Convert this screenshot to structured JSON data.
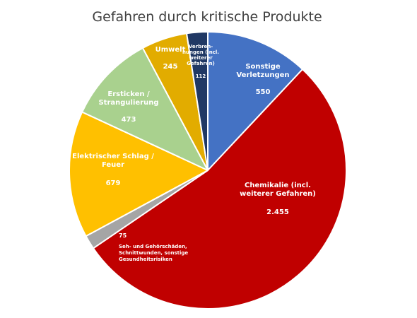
{
  "chart_data": {
    "type": "pie",
    "title": "Gefahren durch kritische Produkte",
    "start_angle_deg": 0,
    "direction": "clockwise",
    "slices": [
      {
        "name_lines": [
          "Sonstige",
          "Verletzungen"
        ],
        "value": 550,
        "value_label": "550",
        "color": "#4472C4",
        "label_position": "inside"
      },
      {
        "name_lines": [
          "Chemikalie (incl.",
          "weiterer Gefahren)"
        ],
        "value": 2455,
        "value_label": "2.455",
        "color": "#C00000",
        "label_position": "inside"
      },
      {
        "name_lines": [
          "Seh- und Gehörschäden,",
          "Schnittwunden, sonstige",
          "Gesundheitsrisiken"
        ],
        "value": 75,
        "value_label": "75",
        "color": "#A5A5A5",
        "label_position": "inside-adjacent"
      },
      {
        "name_lines": [
          "Elektrischer Schlag /",
          "Feuer"
        ],
        "value": 679,
        "value_label": "679",
        "color": "#FFC000",
        "label_position": "inside"
      },
      {
        "name_lines": [
          "Ersticken /",
          "Strangulierung"
        ],
        "value": 473,
        "value_label": "473",
        "color": "#A9D18E",
        "label_position": "inside"
      },
      {
        "name_lines": [
          "Umwelt"
        ],
        "value": 245,
        "value_label": "245",
        "color": "#E2AC00",
        "label_position": "inside"
      },
      {
        "name_lines": [
          "Verbren-",
          "nungen (incl.",
          "weiterer",
          "Gefahren)"
        ],
        "value": 112,
        "value_label": "112",
        "color": "#203864",
        "label_position": "outside-adjacent"
      }
    ]
  }
}
